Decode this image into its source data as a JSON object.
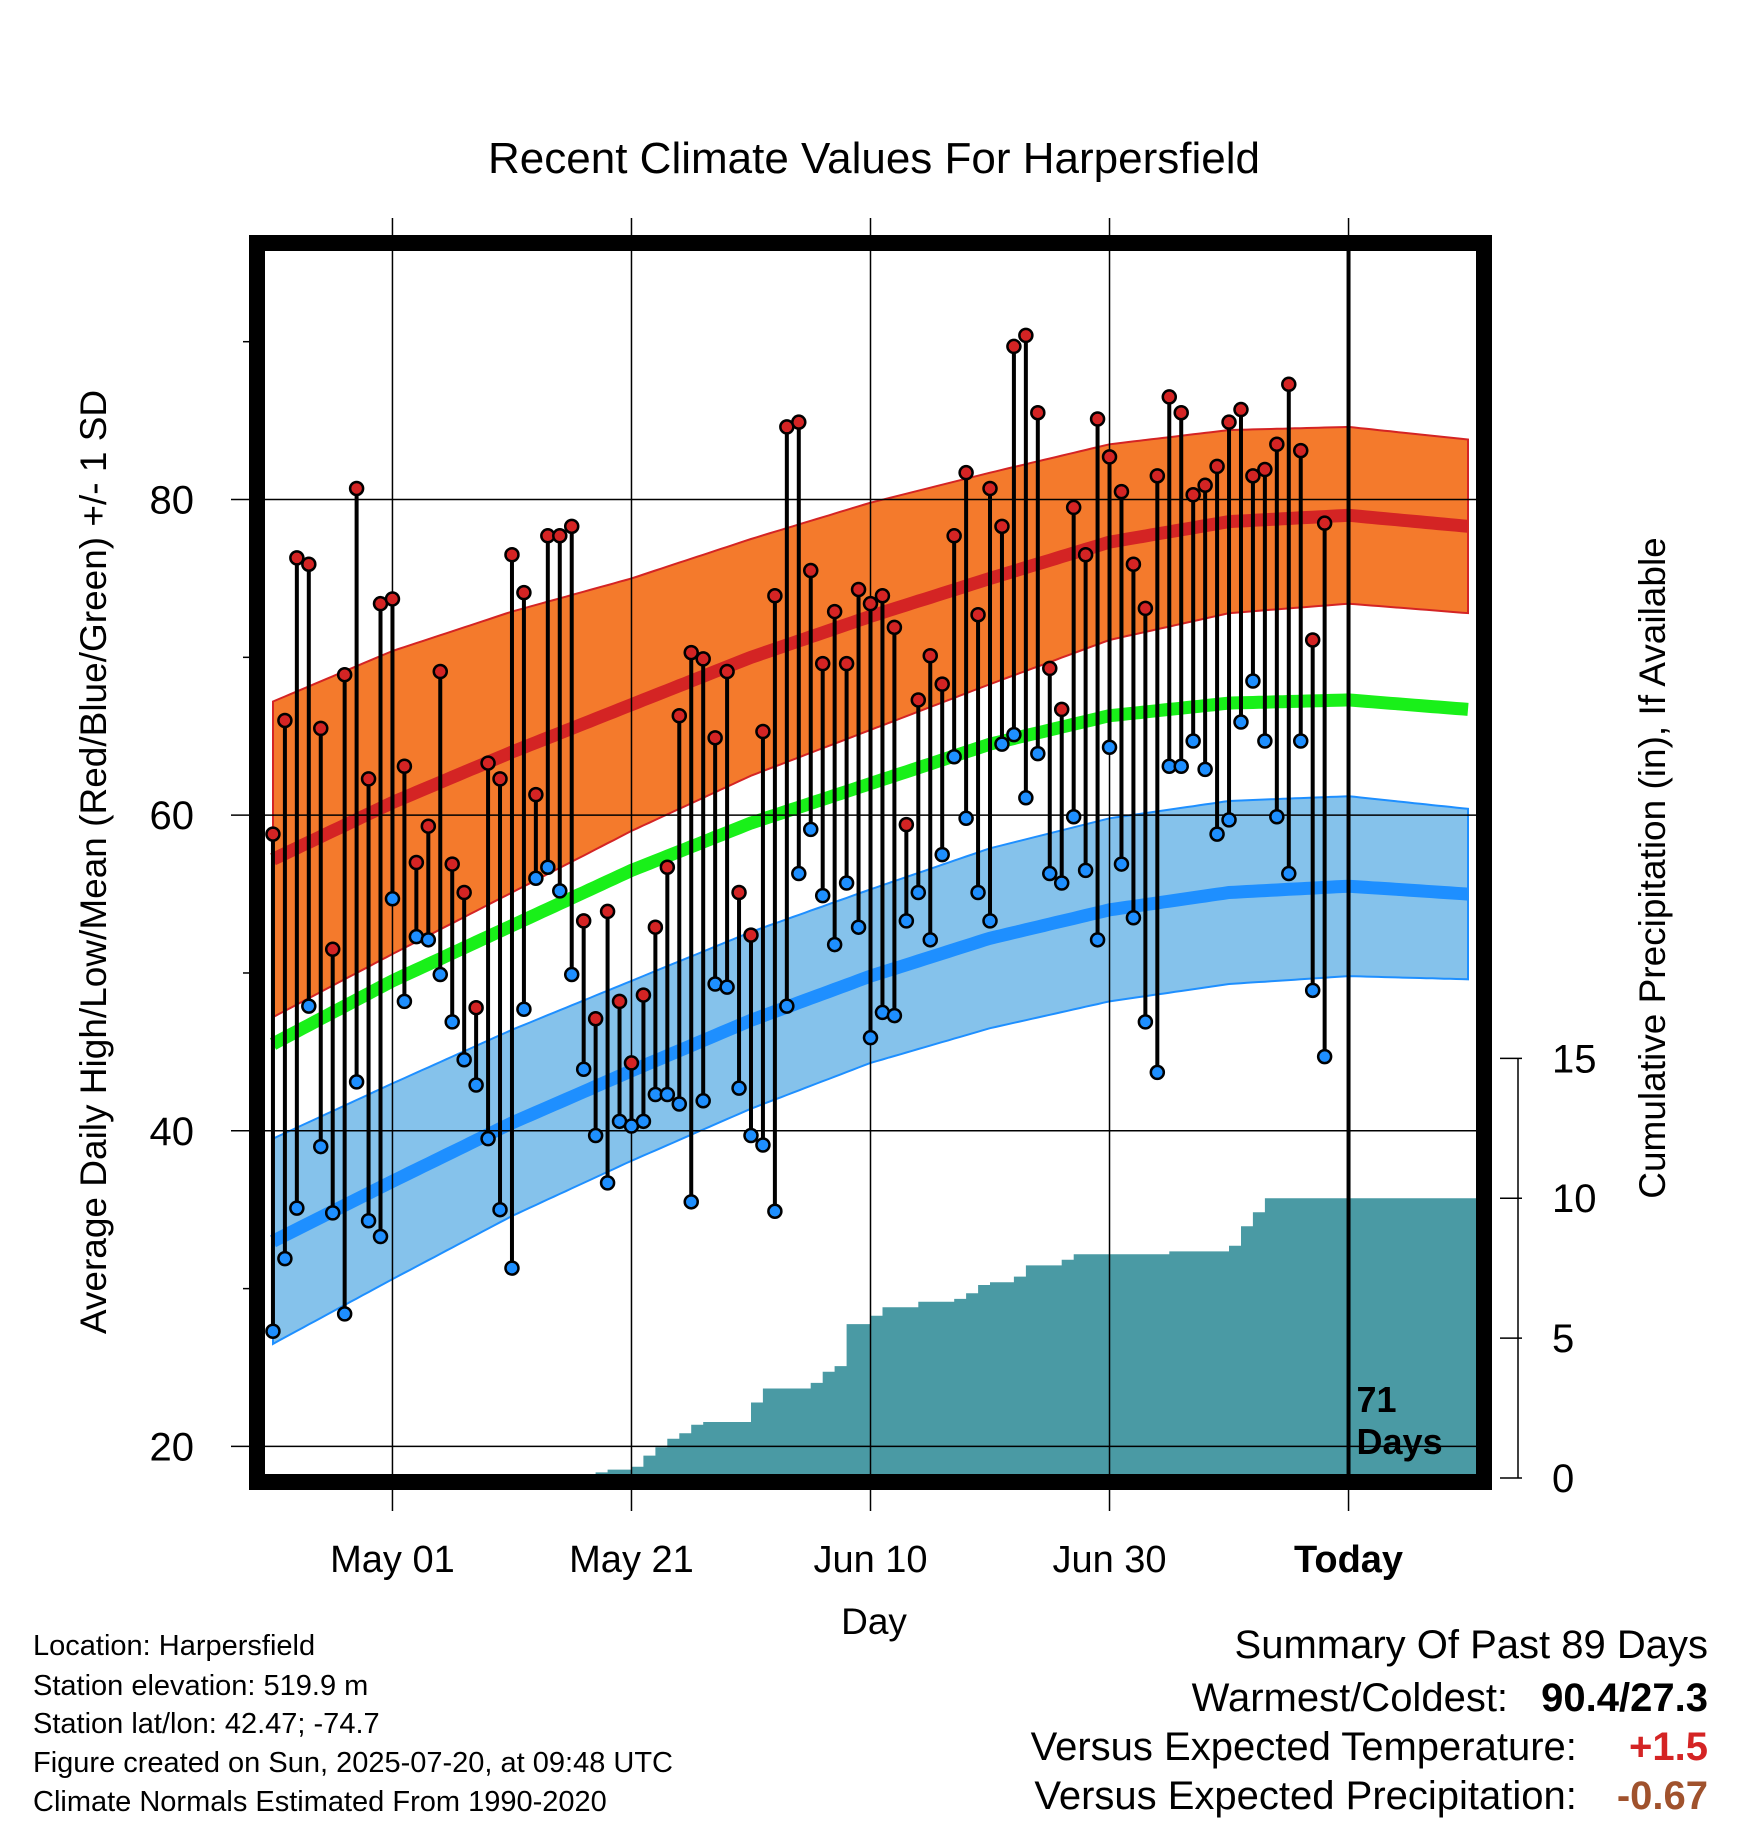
{
  "chart_data": {
    "type": "line",
    "title": "Recent Climate Values For Harpersfield",
    "xlabel": "Day",
    "ylabel": "Average Daily High/Low/Mean (Red/Blue/Green) +/- 1 SD",
    "y2label": "Cumulative Precipitation (in), If Available",
    "xlim": [
      "Apr 20",
      "Jul 31"
    ],
    "ylim": [
      18,
      96
    ],
    "y2lim": [
      0,
      44
    ],
    "x_ticks": [
      "May 01",
      "May 21",
      "Jun 10",
      "Jun 30",
      "Today"
    ],
    "x_ticks_day": [
      11,
      31,
      51,
      71,
      91
    ],
    "y_ticks": [
      "20",
      "40",
      "60",
      "80"
    ],
    "y2_ticks": [
      "0",
      "5",
      "10",
      "15"
    ],
    "grid": true,
    "today_label": "71\nDays",
    "today_day": 91,
    "colors": {
      "high": "#d42424",
      "high_band": "#f47a2c",
      "low": "#1e8fff",
      "low_band": "#85c2eb",
      "mean": "#19f019",
      "precip": "#4a9aa4"
    },
    "normals": {
      "days": [
        1,
        11,
        21,
        31,
        41,
        51,
        61,
        71,
        81,
        91,
        101
      ],
      "high_mean": [
        57.2,
        60.8,
        64.0,
        67.0,
        70.0,
        72.6,
        75.0,
        77.3,
        78.6,
        79.0,
        78.3
      ],
      "high_sd": [
        10.0,
        9.6,
        8.9,
        8.0,
        7.5,
        7.2,
        6.7,
        6.2,
        5.8,
        5.6,
        5.5
      ],
      "low_mean": [
        33.0,
        36.8,
        40.5,
        43.8,
        47.0,
        49.8,
        52.2,
        54.0,
        55.1,
        55.5,
        55.0
      ],
      "low_sd": [
        6.5,
        6.2,
        5.9,
        5.7,
        5.6,
        5.5,
        5.7,
        5.8,
        5.8,
        5.7,
        5.4
      ],
      "mean": [
        45.5,
        49.5,
        53.0,
        56.5,
        59.5,
        62.0,
        64.5,
        66.3,
        67.1,
        67.3,
        66.7
      ]
    },
    "daily": {
      "start_day": 1,
      "high": [
        58.8,
        66.0,
        76.3,
        75.9,
        65.5,
        51.5,
        68.9,
        80.7,
        62.3,
        73.4,
        73.7,
        63.1,
        57.0,
        59.3,
        69.1,
        56.9,
        55.1,
        47.8,
        63.3,
        62.3,
        76.5,
        74.1,
        61.3,
        77.7,
        77.7,
        78.3,
        53.3,
        47.1,
        53.9,
        48.2,
        44.3,
        48.6,
        52.9,
        56.7,
        66.3,
        70.3,
        69.9,
        64.9,
        69.1,
        55.1,
        52.4,
        65.3,
        73.9,
        84.6,
        84.9,
        75.5,
        69.6,
        72.9,
        69.6,
        74.3,
        73.4,
        73.9,
        71.9,
        59.4,
        67.3,
        70.1,
        68.3,
        77.7,
        81.7,
        72.7,
        80.7,
        78.3,
        89.7,
        90.4,
        85.5,
        69.3,
        66.7,
        79.5,
        76.5,
        85.1,
        82.7,
        80.5,
        75.9,
        73.1,
        81.5,
        86.5,
        85.5,
        80.3,
        80.9,
        82.1,
        84.9,
        85.7,
        81.5,
        81.9,
        83.5,
        87.3,
        83.1,
        71.1,
        78.5
      ],
      "low": [
        27.3,
        31.9,
        35.1,
        47.9,
        39.0,
        34.8,
        28.4,
        43.1,
        34.3,
        33.3,
        54.7,
        48.2,
        52.3,
        52.1,
        49.9,
        46.9,
        44.5,
        42.9,
        39.5,
        35.0,
        31.3,
        47.7,
        56.0,
        56.7,
        55.2,
        49.9,
        43.9,
        39.7,
        36.7,
        40.6,
        40.3,
        40.6,
        42.3,
        42.3,
        41.7,
        35.5,
        41.9,
        49.3,
        49.1,
        42.7,
        39.7,
        39.1,
        34.9,
        47.9,
        56.3,
        59.1,
        54.9,
        51.8,
        55.7,
        52.9,
        45.9,
        47.5,
        47.3,
        53.3,
        55.1,
        52.1,
        57.5,
        63.7,
        59.8,
        55.1,
        53.3,
        64.5,
        65.1,
        61.1,
        63.9,
        56.3,
        55.7,
        59.9,
        56.5,
        52.1,
        64.3,
        56.9,
        53.5,
        46.9,
        43.7,
        63.1,
        63.1,
        64.7,
        62.9,
        58.8,
        59.7,
        65.9,
        68.5,
        64.7,
        59.9,
        56.3,
        64.7,
        48.9,
        44.7
      ]
    },
    "precip": {
      "days": [
        1,
        26,
        28,
        29,
        30,
        31,
        32,
        33,
        34,
        35,
        36,
        37,
        38,
        40,
        41,
        42,
        43,
        44,
        45,
        46,
        47,
        48,
        49,
        50,
        51,
        52,
        53,
        54,
        55,
        56,
        57,
        58,
        59,
        60,
        61,
        62,
        63,
        64,
        65,
        66,
        67,
        68,
        71,
        76,
        79,
        81,
        82,
        83,
        84,
        102
      ],
      "values": [
        0.0,
        0.0,
        0.2,
        0.3,
        0.3,
        0.4,
        0.8,
        1.1,
        1.4,
        1.6,
        1.9,
        2.0,
        2.0,
        2.0,
        2.7,
        3.2,
        3.2,
        3.2,
        3.2,
        3.4,
        3.8,
        4.0,
        5.5,
        5.5,
        5.8,
        6.1,
        6.1,
        6.1,
        6.3,
        6.3,
        6.3,
        6.4,
        6.6,
        6.9,
        7.0,
        7.0,
        7.2,
        7.6,
        7.6,
        7.6,
        7.8,
        8.0,
        8.0,
        8.1,
        8.1,
        8.3,
        9.0,
        9.5,
        10.0,
        10.0
      ]
    }
  },
  "info": {
    "location": "Location: Harpersfield",
    "elevation": "Station elevation: 519.9 m",
    "latlon": "Station lat/lon: 42.47; -74.7",
    "created": "Figure created on Sun, 2025-07-20, at 09:48 UTC",
    "normals": "Climate Normals Estimated From 1990-2020"
  },
  "summary": {
    "title": "Summary Of Past 89 Days",
    "warmest_label": "Warmest/Coldest:",
    "warmest_value": "90.4/27.3",
    "temp_label": "Versus Expected Temperature:",
    "temp_value": "+1.5",
    "temp_color": "#d42424",
    "precip_label": "Versus Expected Precipitation:",
    "precip_value": "-0.67",
    "precip_color": "#a0522d"
  }
}
